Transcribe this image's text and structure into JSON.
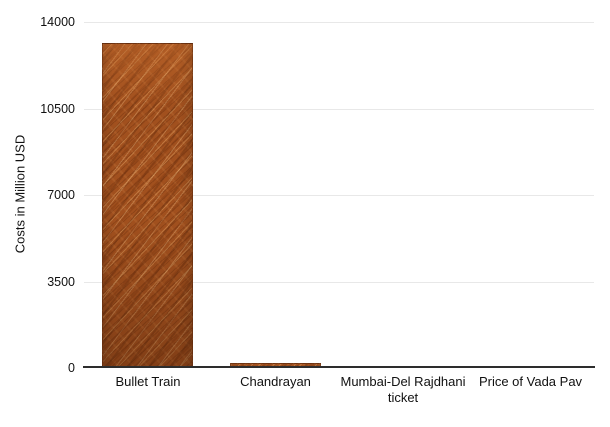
{
  "figure": {
    "background_color": "#ffffff",
    "text_color": "#111111",
    "gridline_color": "#e8e8e8",
    "axis_line_color": "#2d2d2d"
  },
  "chart_data": {
    "type": "bar",
    "title": "",
    "xlabel": "",
    "ylabel": "Costs in Million USD",
    "categories": [
      "Bullet Train",
      "Chandrayan",
      "Mumbai-Del Rajdhani ticket",
      "Price of Vada Pav"
    ],
    "values": [
      13100,
      150,
      0,
      0
    ],
    "ylim": [
      0,
      14000
    ],
    "yticks": [
      0,
      3500,
      7000,
      10500,
      14000
    ],
    "grid": "horizontal-only",
    "legend": "none",
    "bar_color": "#a1501e",
    "bar_texture": "scratched-copper"
  }
}
